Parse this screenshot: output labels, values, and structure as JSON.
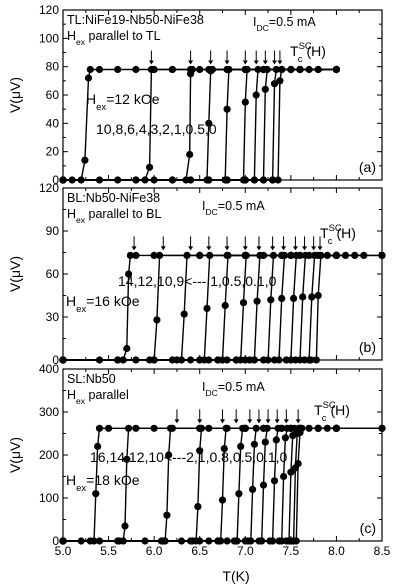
{
  "xlabel": "T(K)",
  "x_ticks": [
    "5.0",
    "5.5",
    "6.0",
    "6.5",
    "7.0",
    "7.5",
    "8.0",
    "8.5"
  ],
  "chart_data": [
    {
      "type": "line",
      "panel_label": "(a)",
      "annotations": {
        "sample": "TL:NiFe19-Nb50-NiFe38",
        "field_orientation": {
          "main": "H",
          "sub": "ex",
          "rest": " parallel to TL"
        },
        "current": {
          "main": "I",
          "sub": "DC",
          "rest": "=0.5 mA"
        },
        "tc": {
          "main": "T",
          "sup": "SC",
          "sub": "c",
          "rest": "(H)"
        },
        "field_label": {
          "main": "H",
          "sub": "ex",
          "rest": "=12 kOe"
        },
        "field_list": "10,8,6,4,3,2,1,0.5,0"
      },
      "ylabel": {
        "main": "V(",
        "greek": "μ",
        "rest": "V)"
      },
      "xlim": [
        5.0,
        8.5
      ],
      "ylim": [
        0,
        120
      ],
      "y_ticks": [
        "0",
        "20",
        "40",
        "60",
        "80",
        "100",
        "120"
      ],
      "plateau": 78,
      "arrow_temperatures": [
        5.97,
        6.4,
        6.62,
        6.8,
        7.0,
        7.12,
        7.22,
        7.32,
        7.38
      ],
      "series": [
        {
          "field": "12 kOe",
          "x": [
            5.0,
            5.1,
            5.2,
            5.24,
            5.28,
            5.3,
            5.4,
            5.6,
            5.8,
            6.0,
            6.2,
            6.4,
            6.6,
            6.8,
            7.0,
            7.2,
            7.4,
            7.6,
            7.8,
            8.0
          ],
          "y": [
            0,
            0,
            0,
            14,
            72,
            78,
            78,
            78,
            78,
            78,
            78,
            78,
            78,
            78,
            78,
            78,
            78,
            78,
            78,
            78
          ]
        },
        {
          "field": "10 kOe",
          "x": [
            5.0,
            5.4,
            5.8,
            5.9,
            5.95,
            5.97,
            6.0,
            6.2,
            6.5,
            7.0,
            7.5,
            8.0
          ],
          "y": [
            0,
            0,
            0,
            0,
            9,
            78,
            78,
            78,
            78,
            78,
            78,
            78
          ]
        },
        {
          "field": "8 kOe",
          "x": [
            5.0,
            5.6,
            6.2,
            6.35,
            6.39,
            6.4,
            6.42,
            6.8,
            7.2,
            7.6,
            8.0
          ],
          "y": [
            0,
            0,
            0,
            0,
            18,
            75,
            78,
            78,
            78,
            78,
            78
          ]
        },
        {
          "field": "6 kOe",
          "x": [
            5.0,
            5.8,
            6.4,
            6.58,
            6.6,
            6.62,
            6.64,
            7.0,
            7.5,
            8.0
          ],
          "y": [
            0,
            0,
            0,
            0,
            40,
            77,
            78,
            78,
            78,
            78
          ]
        },
        {
          "field": "4 kOe",
          "x": [
            5.0,
            6.0,
            6.6,
            6.78,
            6.8,
            6.82,
            7.2,
            7.6,
            8.0
          ],
          "y": [
            0,
            0,
            0,
            0,
            50,
            78,
            78,
            78,
            78
          ]
        },
        {
          "field": "3 kOe",
          "x": [
            5.0,
            6.2,
            6.8,
            6.98,
            7.0,
            7.02,
            7.4,
            8.0
          ],
          "y": [
            0,
            0,
            0,
            0,
            55,
            78,
            78,
            78
          ]
        },
        {
          "field": "2 kOe",
          "x": [
            5.0,
            6.4,
            7.0,
            7.1,
            7.12,
            7.14,
            7.5,
            8.0
          ],
          "y": [
            0,
            0,
            0,
            0,
            60,
            78,
            78,
            78
          ]
        },
        {
          "field": "1 kOe",
          "x": [
            5.0,
            6.6,
            7.1,
            7.2,
            7.22,
            7.24,
            7.6,
            8.0
          ],
          "y": [
            0,
            0,
            0,
            0,
            64,
            78,
            78,
            78
          ]
        },
        {
          "field": "0.5 kOe",
          "x": [
            5.0,
            6.8,
            7.2,
            7.3,
            7.32,
            7.34,
            7.7,
            8.0
          ],
          "y": [
            0,
            0,
            0,
            0,
            68,
            78,
            78,
            78
          ]
        },
        {
          "field": "0 kOe",
          "x": [
            5.0,
            7.0,
            7.3,
            7.36,
            7.38,
            7.4,
            7.8,
            8.0
          ],
          "y": [
            0,
            0,
            0,
            0,
            70,
            78,
            78,
            78
          ]
        }
      ]
    },
    {
      "type": "line",
      "panel_label": "(b)",
      "annotations": {
        "sample": "BL:Nb50-NiFe38",
        "field_orientation": {
          "main": "H",
          "sub": "ex",
          "rest": " parallel to BL"
        },
        "current": {
          "main": "I",
          "sub": "DC",
          "rest": "=0.5 mA"
        },
        "tc": {
          "main": "T",
          "sup": "SC",
          "sub": "c",
          "rest": "(H)"
        },
        "field_label": {
          "main": "H",
          "sub": "ex",
          "rest": "=16 kOe"
        },
        "field_list": "14,12,10,9<--- 1,0.5,0.1,0"
      },
      "ylabel": {
        "main": "V(",
        "greek": "μ",
        "rest": "V)"
      },
      "xlim": [
        5.0,
        8.5
      ],
      "ylim": [
        0,
        120
      ],
      "y_ticks": [
        "0",
        "30",
        "60",
        "90",
        "120"
      ],
      "plateau": 73,
      "arrow_temperatures": [
        5.78,
        6.1,
        6.4,
        6.6,
        6.8,
        7.0,
        7.15,
        7.3,
        7.42,
        7.55,
        7.65,
        7.75,
        7.82
      ],
      "series": [
        {
          "field": "16 kOe",
          "x": [
            5.0,
            5.4,
            5.6,
            5.66,
            5.7,
            5.72,
            5.74,
            5.8,
            6.0,
            6.5,
            7.0,
            7.5,
            8.0,
            8.5
          ],
          "y": [
            0,
            0,
            0,
            0,
            8,
            60,
            73,
            73,
            73,
            73,
            73,
            73,
            73,
            73
          ]
        },
        {
          "field": "14 kOe",
          "x": [
            5.0,
            5.6,
            5.95,
            6.0,
            6.03,
            6.06,
            6.5,
            7.0,
            7.5,
            8.0
          ],
          "y": [
            0,
            0,
            0,
            0,
            28,
            73,
            73,
            73,
            73,
            73
          ]
        },
        {
          "field": "12 kOe",
          "x": [
            5.0,
            5.8,
            6.25,
            6.3,
            6.33,
            6.36,
            6.8,
            7.4,
            8.0
          ],
          "y": [
            0,
            0,
            0,
            0,
            32,
            73,
            73,
            73,
            73
          ]
        },
        {
          "field": "10 kOe",
          "x": [
            5.0,
            6.0,
            6.5,
            6.55,
            6.58,
            6.61,
            7.0,
            7.5,
            8.0
          ],
          "y": [
            0,
            0,
            0,
            0,
            36,
            73,
            73,
            73,
            73
          ]
        },
        {
          "field": "9 kOe",
          "x": [
            5.0,
            6.2,
            6.7,
            6.75,
            6.78,
            6.81,
            7.2,
            8.0
          ],
          "y": [
            0,
            0,
            0,
            0,
            38,
            73,
            73,
            73
          ]
        },
        {
          "field": "—",
          "x": [
            5.0,
            6.4,
            6.9,
            6.95,
            6.98,
            7.01,
            7.4,
            8.0
          ],
          "y": [
            0,
            0,
            0,
            0,
            40,
            73,
            73,
            73
          ]
        },
        {
          "field": "—",
          "x": [
            5.0,
            6.5,
            7.05,
            7.1,
            7.13,
            7.16,
            7.5,
            8.0
          ],
          "y": [
            0,
            0,
            0,
            0,
            41,
            73,
            73,
            73
          ]
        },
        {
          "field": "—",
          "x": [
            5.0,
            6.6,
            7.2,
            7.25,
            7.28,
            7.31,
            7.6,
            8.0
          ],
          "y": [
            0,
            0,
            0,
            0,
            42,
            73,
            73,
            73
          ]
        },
        {
          "field": "—",
          "x": [
            5.0,
            6.7,
            7.32,
            7.37,
            7.4,
            7.43,
            7.7,
            8.0
          ],
          "y": [
            0,
            0,
            0,
            0,
            43,
            73,
            73,
            73
          ]
        },
        {
          "field": "1 kOe",
          "x": [
            5.0,
            6.8,
            7.45,
            7.5,
            7.53,
            7.56,
            7.8,
            8.0
          ],
          "y": [
            0,
            0,
            0,
            0,
            43,
            73,
            73,
            73
          ]
        },
        {
          "field": "0.5 kOe",
          "x": [
            5.0,
            6.9,
            7.55,
            7.6,
            7.63,
            7.66,
            7.9,
            8.2
          ],
          "y": [
            0,
            0,
            0,
            0,
            44,
            73,
            73,
            73
          ]
        },
        {
          "field": "0.1 kOe",
          "x": [
            5.0,
            7.0,
            7.65,
            7.7,
            7.73,
            7.76,
            8.0,
            8.3
          ],
          "y": [
            0,
            0,
            0,
            0,
            44,
            73,
            73,
            73
          ]
        },
        {
          "field": "0 kOe",
          "x": [
            5.0,
            7.1,
            7.72,
            7.78,
            7.8,
            7.83,
            8.1,
            8.5
          ],
          "y": [
            0,
            0,
            0,
            0,
            45,
            73,
            73,
            73
          ]
        }
      ]
    },
    {
      "type": "line",
      "panel_label": "(c)",
      "annotations": {
        "sample": "SL:Nb50",
        "field_orientation": {
          "main": "H",
          "sub": "ex",
          "rest": " parallel"
        },
        "current": {
          "main": "I",
          "sub": "DC",
          "rest": "=0.5 mA"
        },
        "tc": {
          "main": "T",
          "sup": "SC",
          "sub": "c",
          "rest": "(H)"
        },
        "field_label": {
          "main": "H",
          "sub": "ex",
          "rest": "=18 kOe"
        },
        "field_list": "16,14,12,10<---2,1,0.8,0.5,0.1,0"
      },
      "ylabel": {
        "main": "V(",
        "greek": "μ",
        "rest": "V)"
      },
      "xlim": [
        5.0,
        8.5
      ],
      "ylim": [
        0,
        400
      ],
      "y_ticks": [
        "0",
        "100",
        "200",
        "300",
        "400"
      ],
      "plateau": 262,
      "arrow_temperatures": [
        6.25,
        6.5,
        6.75,
        6.9,
        7.05,
        7.15,
        7.25,
        7.35,
        7.45,
        7.58
      ],
      "series": [
        {
          "field": "18 kOe",
          "x": [
            5.0,
            5.2,
            5.3,
            5.34,
            5.36,
            5.38,
            5.4,
            5.5,
            5.8,
            6.2,
            6.6,
            7.0,
            7.4,
            7.8,
            8.0,
            8.5
          ],
          "y": [
            0,
            0,
            0,
            0,
            110,
            220,
            262,
            262,
            262,
            262,
            262,
            262,
            262,
            262,
            262,
            262
          ]
        },
        {
          "field": "16 kOe",
          "x": [
            5.0,
            5.4,
            5.62,
            5.66,
            5.68,
            5.7,
            5.72,
            6.0,
            6.5,
            7.0,
            7.5,
            8.0
          ],
          "y": [
            0,
            0,
            0,
            0,
            35,
            190,
            262,
            262,
            262,
            262,
            262,
            262
          ]
        },
        {
          "field": "14 kOe",
          "x": [
            5.0,
            5.6,
            6.08,
            6.12,
            6.14,
            6.16,
            6.18,
            6.5,
            7.0,
            7.5,
            8.0
          ],
          "y": [
            0,
            0,
            0,
            0,
            60,
            200,
            262,
            262,
            262,
            262,
            262
          ]
        },
        {
          "field": "12 kOe",
          "x": [
            5.0,
            5.9,
            6.42,
            6.46,
            6.48,
            6.5,
            6.52,
            6.8,
            7.2,
            7.6,
            8.0
          ],
          "y": [
            0,
            0,
            0,
            0,
            80,
            210,
            262,
            262,
            262,
            262,
            262
          ]
        },
        {
          "field": "10 kOe",
          "x": [
            5.0,
            6.1,
            6.7,
            6.73,
            6.75,
            6.77,
            6.79,
            7.0,
            7.5,
            8.0
          ],
          "y": [
            0,
            0,
            0,
            0,
            95,
            215,
            262,
            262,
            262,
            262
          ]
        },
        {
          "field": "—",
          "x": [
            5.0,
            6.3,
            6.88,
            6.91,
            6.93,
            6.95,
            6.97,
            7.2,
            7.6,
            8.0
          ],
          "y": [
            0,
            0,
            0,
            0,
            110,
            220,
            262,
            262,
            262,
            262
          ]
        },
        {
          "field": "—",
          "x": [
            5.0,
            6.4,
            7.03,
            7.06,
            7.08,
            7.1,
            7.12,
            7.4,
            8.0
          ],
          "y": [
            0,
            0,
            0,
            0,
            120,
            225,
            262,
            262,
            262
          ]
        },
        {
          "field": "2 kOe",
          "x": [
            5.0,
            6.5,
            7.15,
            7.18,
            7.2,
            7.22,
            7.24,
            7.5,
            8.0
          ],
          "y": [
            0,
            0,
            0,
            0,
            130,
            230,
            262,
            262,
            262
          ]
        },
        {
          "field": "1 kOe",
          "x": [
            5.0,
            6.6,
            7.27,
            7.3,
            7.32,
            7.34,
            7.36,
            7.6,
            8.0
          ],
          "y": [
            0,
            0,
            0,
            0,
            140,
            235,
            262,
            262,
            262
          ]
        },
        {
          "field": "0.8 kOe",
          "x": [
            5.0,
            6.7,
            7.37,
            7.4,
            7.42,
            7.44,
            7.46,
            7.7,
            8.0
          ],
          "y": [
            0,
            0,
            0,
            0,
            150,
            240,
            262,
            262,
            262
          ]
        },
        {
          "field": "0.5 kOe",
          "x": [
            5.0,
            6.8,
            7.45,
            7.48,
            7.5,
            7.52,
            7.54,
            7.8,
            8.0
          ],
          "y": [
            0,
            0,
            0,
            0,
            160,
            245,
            262,
            262,
            262
          ]
        },
        {
          "field": "0.1 kOe",
          "x": [
            5.0,
            6.9,
            7.5,
            7.53,
            7.55,
            7.57,
            7.59,
            7.8,
            8.0
          ],
          "y": [
            0,
            0,
            0,
            0,
            170,
            250,
            262,
            262,
            262
          ]
        },
        {
          "field": "0 kOe",
          "x": [
            5.0,
            7.0,
            7.53,
            7.56,
            7.58,
            7.6,
            7.62,
            7.9,
            8.5
          ],
          "y": [
            0,
            0,
            0,
            0,
            180,
            252,
            262,
            262,
            262
          ]
        }
      ]
    }
  ]
}
